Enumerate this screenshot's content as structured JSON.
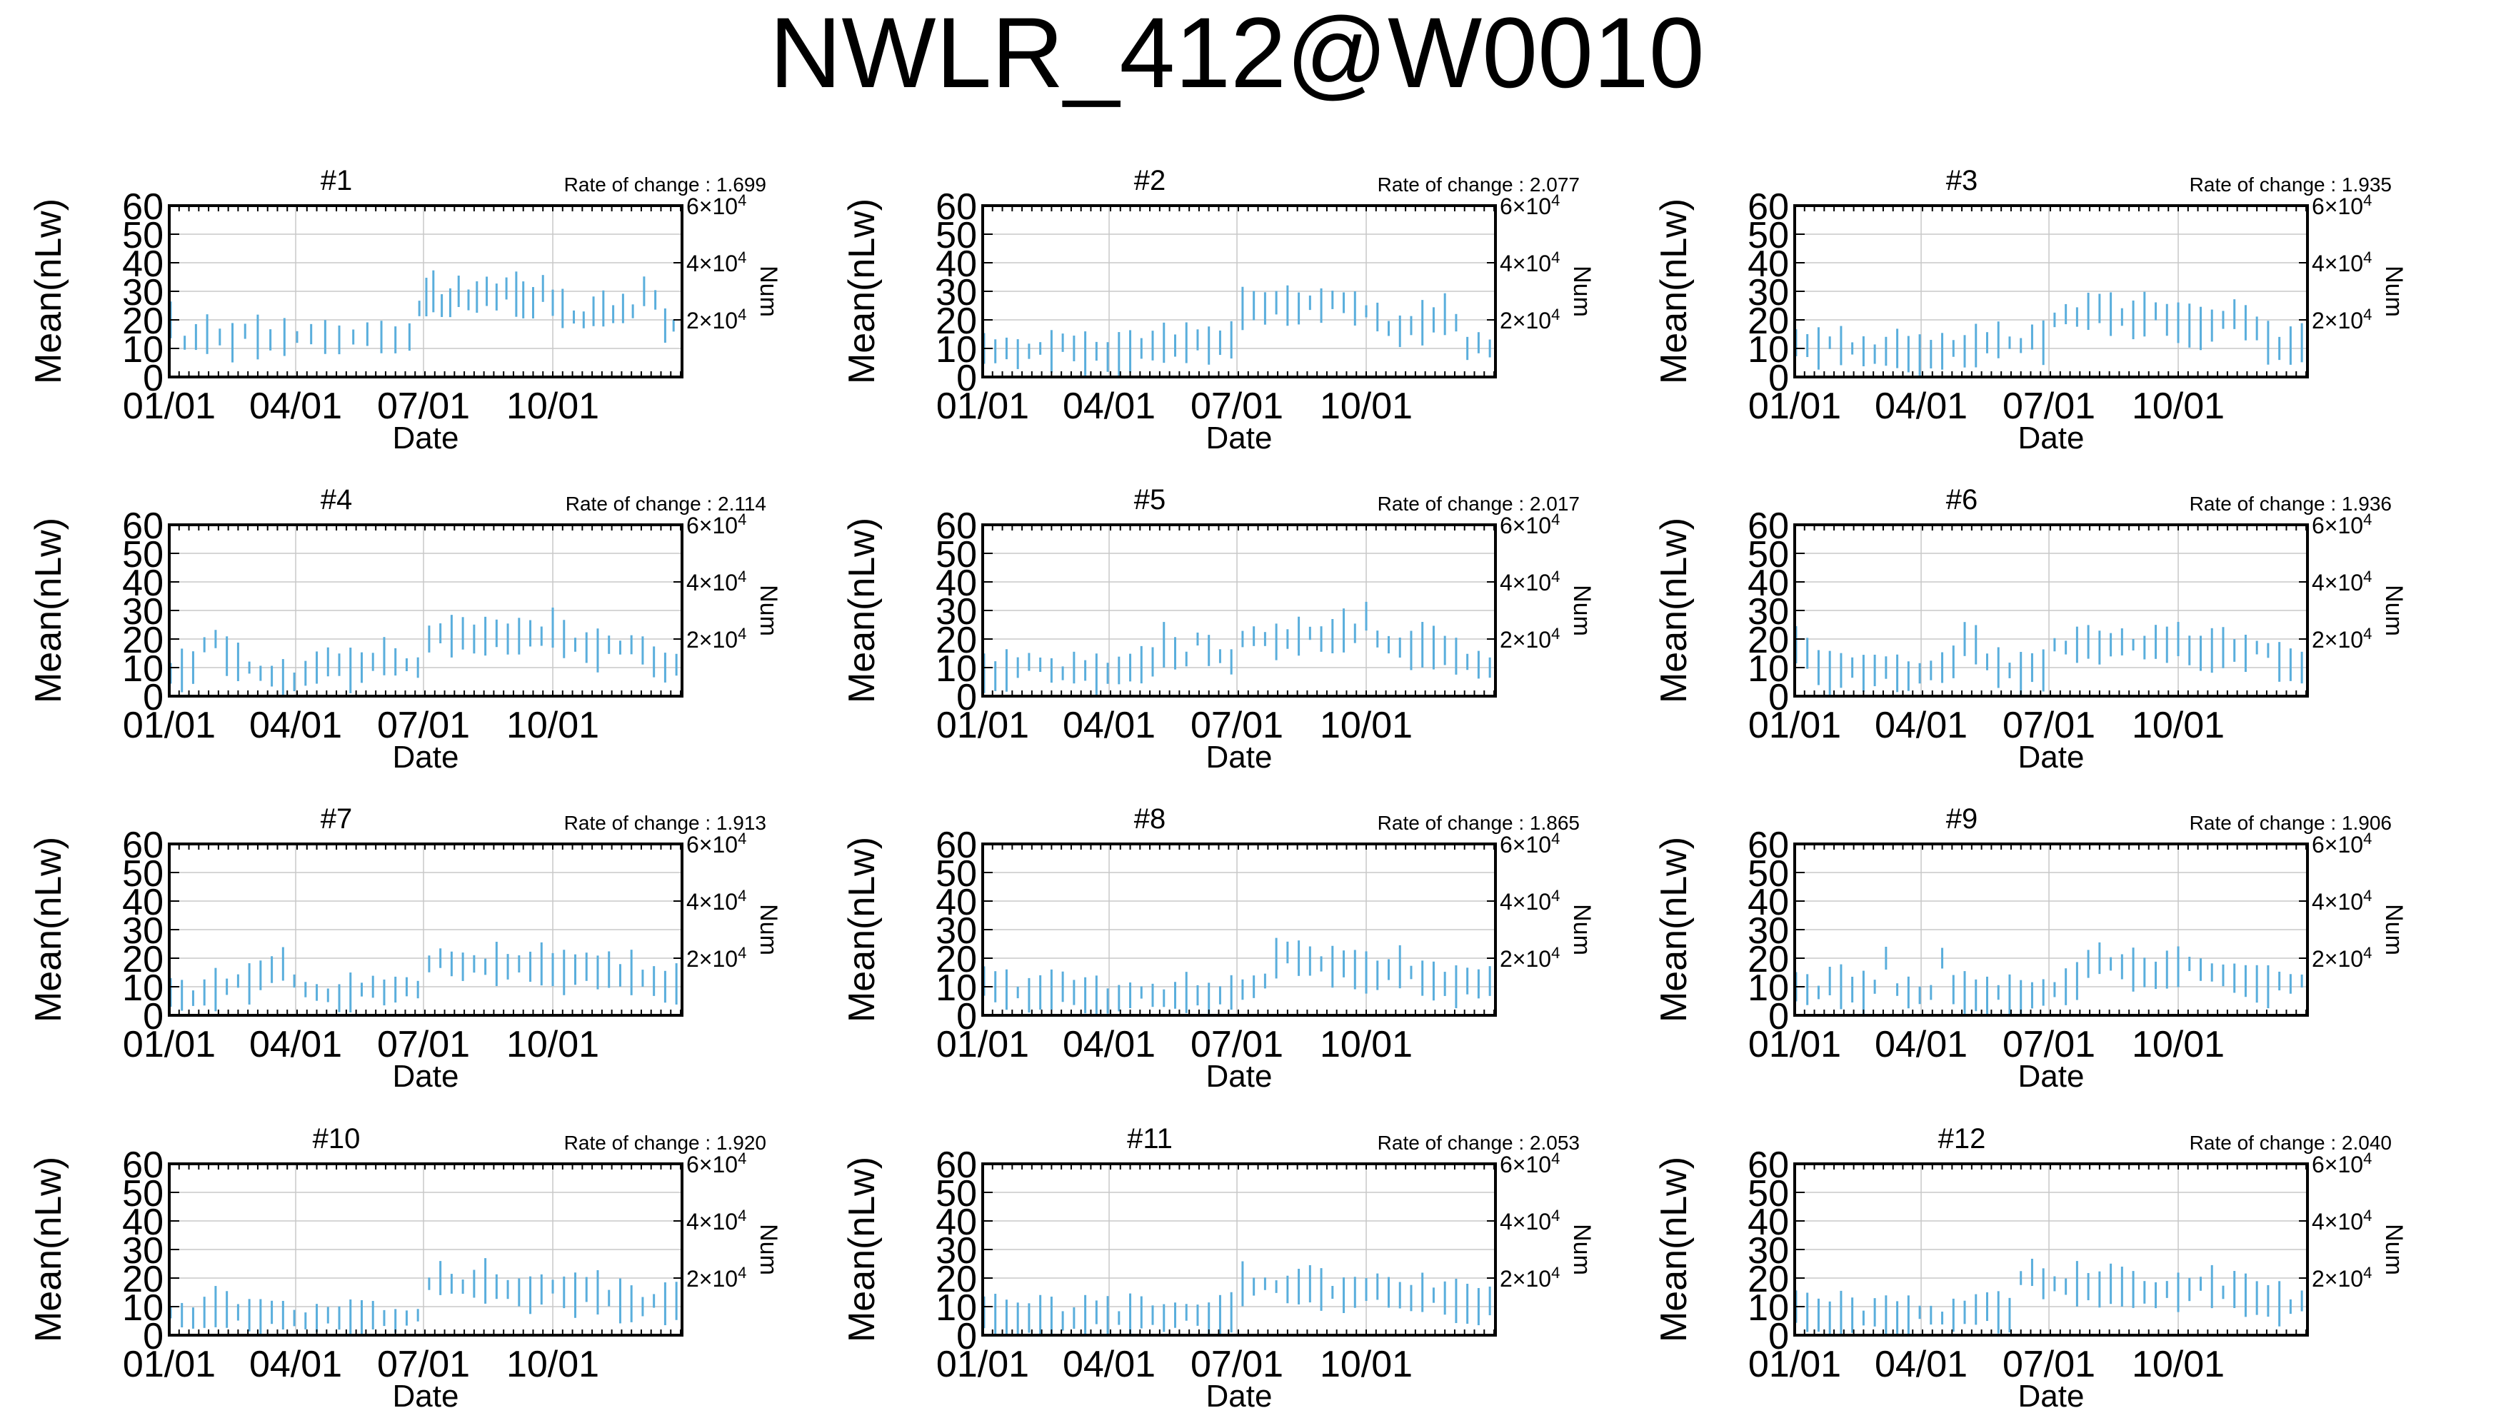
{
  "figure": {
    "title": "NWLR_412@W0010"
  },
  "common": {
    "xlabel": "Date",
    "ylabel": "Mean(nLw)",
    "y2label": "Num",
    "rate_prefix": "Rate of change : ",
    "x_ticks": [
      "01/01",
      "04/01",
      "07/01",
      "10/01"
    ],
    "y_ticks": [
      "0",
      "10",
      "20",
      "30",
      "40",
      "50",
      "60"
    ],
    "y2_tick_labels": [
      {
        "mantissa": "2",
        "exponent": "4"
      },
      {
        "mantissa": "4",
        "exponent": "4"
      },
      {
        "mantissa": "6",
        "exponent": "4"
      }
    ],
    "line_color": "#5aaedc",
    "grid": true
  },
  "chart_data": [
    {
      "type": "bar",
      "title": "#1",
      "rate_of_change": "1.699",
      "ylim": [
        0,
        60
      ],
      "y2lim": [
        0,
        60000
      ],
      "x": [
        "01/02",
        "01/12",
        "01/20",
        "01/28",
        "02/06",
        "02/15",
        "02/24",
        "03/05",
        "03/14",
        "03/24",
        "04/02",
        "04/12",
        "04/22",
        "05/02",
        "05/12",
        "05/22",
        "06/01",
        "06/11",
        "06/21",
        "06/28",
        "07/03",
        "07/08",
        "07/14",
        "07/20",
        "07/26",
        "08/02",
        "08/08",
        "08/15",
        "08/22",
        "08/29",
        "09/05",
        "09/10",
        "09/17",
        "09/24",
        "10/01",
        "10/08",
        "10/16",
        "10/23",
        "10/30",
        "11/06",
        "11/13",
        "11/20",
        "11/27",
        "12/05",
        "12/13",
        "12/20",
        "12/26"
      ],
      "values": [
        20,
        12,
        14,
        15,
        14,
        12,
        16,
        14,
        13,
        14,
        14,
        15,
        14,
        13,
        14,
        15,
        14,
        13,
        14,
        24,
        28,
        30,
        25,
        26,
        30,
        27,
        28,
        30,
        28,
        31,
        29,
        27,
        26,
        31,
        26,
        24,
        21,
        20,
        23,
        24,
        22,
        24,
        23,
        30,
        27,
        18,
        18
      ]
    },
    {
      "type": "bar",
      "title": "#2",
      "rate_of_change": "2.077",
      "ylim": [
        0,
        60
      ],
      "y2lim": [
        0,
        60000
      ],
      "x": [
        "01/02",
        "01/10",
        "01/18",
        "01/26",
        "02/03",
        "02/11",
        "02/19",
        "02/27",
        "03/07",
        "03/15",
        "03/23",
        "03/31",
        "04/08",
        "04/16",
        "04/24",
        "05/02",
        "05/10",
        "05/18",
        "05/26",
        "06/03",
        "06/11",
        "06/19",
        "06/27",
        "07/05",
        "07/13",
        "07/21",
        "07/29",
        "08/06",
        "08/14",
        "08/22",
        "08/30",
        "09/07",
        "09/15",
        "09/23",
        "10/01",
        "10/09",
        "10/17",
        "10/25",
        "11/02",
        "11/10",
        "11/18",
        "11/26",
        "12/04",
        "12/12",
        "12/20",
        "12/28"
      ],
      "values": [
        10,
        9,
        10,
        8,
        9,
        10,
        9,
        12,
        10,
        8,
        9,
        7,
        8,
        9,
        10,
        11,
        12,
        11,
        12,
        13,
        11,
        12,
        13,
        24,
        25,
        24,
        26,
        25,
        24,
        26,
        25,
        27,
        26,
        24,
        23,
        21,
        17,
        16,
        18,
        19,
        20,
        22,
        19,
        10,
        12,
        10
      ]
    },
    {
      "type": "bar",
      "title": "#3",
      "rate_of_change": "1.935",
      "ylim": [
        0,
        60
      ],
      "y2lim": [
        0,
        60000
      ],
      "x": [
        "01/02",
        "01/10",
        "01/18",
        "01/26",
        "02/03",
        "02/11",
        "02/19",
        "02/27",
        "03/07",
        "03/15",
        "03/23",
        "03/31",
        "04/08",
        "04/16",
        "04/24",
        "05/02",
        "05/10",
        "05/18",
        "05/26",
        "06/03",
        "06/11",
        "06/19",
        "06/27",
        "07/05",
        "07/13",
        "07/21",
        "07/29",
        "08/06",
        "08/14",
        "08/22",
        "08/30",
        "09/07",
        "09/15",
        "09/23",
        "10/01",
        "10/09",
        "10/17",
        "10/25",
        "11/02",
        "11/10",
        "11/18",
        "11/26",
        "12/04",
        "12/12",
        "12/20",
        "12/28"
      ],
      "values": [
        12,
        11,
        10,
        12,
        11,
        10,
        9,
        8,
        9,
        10,
        8,
        7,
        8,
        9,
        10,
        9,
        11,
        12,
        13,
        12,
        11,
        14,
        12,
        20,
        22,
        21,
        23,
        24,
        22,
        21,
        20,
        22,
        23,
        20,
        19,
        18,
        17,
        18,
        20,
        22,
        19,
        17,
        12,
        10,
        11,
        12
      ]
    },
    {
      "type": "bar",
      "title": "#4",
      "rate_of_change": "2.114",
      "ylim": [
        0,
        60
      ],
      "y2lim": [
        0,
        60000
      ],
      "x": [
        "01/02",
        "01/10",
        "01/18",
        "01/26",
        "02/03",
        "02/11",
        "02/19",
        "02/27",
        "03/07",
        "03/15",
        "03/23",
        "03/31",
        "04/08",
        "04/16",
        "04/24",
        "05/02",
        "05/10",
        "05/18",
        "05/26",
        "06/03",
        "06/11",
        "06/19",
        "06/27",
        "07/05",
        "07/13",
        "07/21",
        "07/29",
        "08/06",
        "08/14",
        "08/22",
        "08/30",
        "09/07",
        "09/15",
        "09/23",
        "10/01",
        "10/09",
        "10/17",
        "10/25",
        "11/02",
        "11/10",
        "11/18",
        "11/26",
        "12/04",
        "12/12",
        "12/20",
        "12/28"
      ],
      "values": [
        8,
        9,
        10,
        18,
        20,
        14,
        12,
        10,
        8,
        7,
        6,
        5,
        8,
        10,
        12,
        11,
        9,
        10,
        12,
        14,
        12,
        11,
        10,
        20,
        22,
        21,
        22,
        20,
        21,
        22,
        20,
        21,
        22,
        21,
        24,
        20,
        18,
        17,
        16,
        18,
        17,
        18,
        16,
        12,
        10,
        11
      ]
    },
    {
      "type": "bar",
      "title": "#5",
      "rate_of_change": "2.017",
      "ylim": [
        0,
        60
      ],
      "y2lim": [
        0,
        60000
      ],
      "x": [
        "01/02",
        "01/10",
        "01/18",
        "01/26",
        "02/03",
        "02/11",
        "02/19",
        "02/27",
        "03/07",
        "03/15",
        "03/23",
        "03/31",
        "04/08",
        "04/16",
        "04/24",
        "05/02",
        "05/10",
        "05/18",
        "05/26",
        "06/03",
        "06/11",
        "06/19",
        "06/27",
        "07/05",
        "07/13",
        "07/21",
        "07/29",
        "08/06",
        "08/14",
        "08/22",
        "08/30",
        "09/07",
        "09/15",
        "09/23",
        "10/01",
        "10/09",
        "10/17",
        "10/25",
        "11/02",
        "11/10",
        "11/18",
        "11/26",
        "12/04",
        "12/12",
        "12/20",
        "12/28"
      ],
      "values": [
        8,
        7,
        9,
        10,
        12,
        11,
        9,
        8,
        10,
        9,
        7,
        8,
        9,
        10,
        11,
        12,
        18,
        15,
        13,
        20,
        16,
        14,
        12,
        20,
        21,
        20,
        19,
        20,
        21,
        22,
        20,
        21,
        23,
        22,
        28,
        20,
        18,
        17,
        16,
        18,
        17,
        16,
        14,
        12,
        11,
        10
      ]
    },
    {
      "type": "bar",
      "title": "#6",
      "rate_of_change": "1.936",
      "ylim": [
        0,
        60
      ],
      "y2lim": [
        0,
        60000
      ],
      "x": [
        "01/02",
        "01/10",
        "01/18",
        "01/26",
        "02/03",
        "02/11",
        "02/19",
        "02/27",
        "03/07",
        "03/15",
        "03/23",
        "03/31",
        "04/08",
        "04/16",
        "04/24",
        "05/02",
        "05/10",
        "05/18",
        "05/26",
        "06/03",
        "06/11",
        "06/19",
        "06/27",
        "07/05",
        "07/13",
        "07/21",
        "07/29",
        "08/06",
        "08/14",
        "08/22",
        "08/30",
        "09/07",
        "09/15",
        "09/23",
        "10/01",
        "10/09",
        "10/17",
        "10/25",
        "11/02",
        "11/10",
        "11/18",
        "11/26",
        "12/04",
        "12/12",
        "12/20",
        "12/28"
      ],
      "values": [
        18,
        15,
        10,
        8,
        9,
        10,
        8,
        9,
        10,
        8,
        7,
        8,
        9,
        10,
        12,
        20,
        18,
        12,
        10,
        9,
        8,
        10,
        9,
        18,
        17,
        18,
        19,
        17,
        18,
        19,
        18,
        17,
        19,
        18,
        20,
        16,
        15,
        16,
        17,
        16,
        15,
        17,
        16,
        12,
        11,
        10
      ]
    },
    {
      "type": "bar",
      "title": "#7",
      "rate_of_change": "1.913",
      "ylim": [
        0,
        60
      ],
      "y2lim": [
        0,
        60000
      ],
      "x": [
        "01/02",
        "01/10",
        "01/18",
        "01/26",
        "02/03",
        "02/11",
        "02/19",
        "02/27",
        "03/07",
        "03/15",
        "03/23",
        "03/31",
        "04/08",
        "04/16",
        "04/24",
        "05/02",
        "05/10",
        "05/18",
        "05/26",
        "06/03",
        "06/11",
        "06/19",
        "06/27",
        "07/05",
        "07/13",
        "07/21",
        "07/29",
        "08/06",
        "08/14",
        "08/22",
        "08/30",
        "09/07",
        "09/15",
        "09/23",
        "10/01",
        "10/09",
        "10/17",
        "10/25",
        "11/02",
        "11/10",
        "11/18",
        "11/26",
        "12/04",
        "12/12",
        "12/20",
        "12/28"
      ],
      "values": [
        8,
        7,
        6,
        8,
        9,
        10,
        12,
        11,
        14,
        16,
        18,
        12,
        9,
        8,
        7,
        6,
        8,
        9,
        10,
        8,
        9,
        10,
        9,
        18,
        20,
        18,
        17,
        18,
        17,
        18,
        17,
        18,
        17,
        18,
        16,
        15,
        16,
        17,
        15,
        16,
        14,
        15,
        13,
        12,
        10,
        11
      ]
    },
    {
      "type": "bar",
      "title": "#8",
      "rate_of_change": "1.865",
      "ylim": [
        0,
        60
      ],
      "y2lim": [
        0,
        60000
      ],
      "x": [
        "01/02",
        "01/10",
        "01/18",
        "01/26",
        "02/03",
        "02/11",
        "02/19",
        "02/27",
        "03/07",
        "03/15",
        "03/23",
        "03/31",
        "04/08",
        "04/16",
        "04/24",
        "05/02",
        "05/10",
        "05/18",
        "05/26",
        "06/03",
        "06/11",
        "06/19",
        "06/27",
        "07/05",
        "07/13",
        "07/21",
        "07/29",
        "08/06",
        "08/14",
        "08/22",
        "08/30",
        "09/07",
        "09/15",
        "09/23",
        "10/01",
        "10/09",
        "10/17",
        "10/25",
        "11/02",
        "11/10",
        "11/18",
        "11/26",
        "12/04",
        "12/12",
        "12/20",
        "12/28"
      ],
      "values": [
        12,
        10,
        9,
        8,
        7,
        8,
        9,
        10,
        8,
        7,
        6,
        5,
        6,
        7,
        8,
        7,
        6,
        7,
        8,
        7,
        6,
        7,
        8,
        9,
        10,
        12,
        20,
        22,
        20,
        19,
        18,
        17,
        18,
        16,
        15,
        14,
        16,
        17,
        15,
        13,
        12,
        11,
        10,
        12,
        11,
        12
      ]
    },
    {
      "type": "bar",
      "title": "#9",
      "rate_of_change": "1.906",
      "ylim": [
        0,
        60
      ],
      "y2lim": [
        0,
        60000
      ],
      "x": [
        "01/02",
        "01/10",
        "01/18",
        "01/26",
        "02/03",
        "02/11",
        "02/19",
        "02/27",
        "03/07",
        "03/15",
        "03/23",
        "03/31",
        "04/08",
        "04/16",
        "04/24",
        "05/02",
        "05/10",
        "05/18",
        "05/26",
        "06/03",
        "06/11",
        "06/19",
        "06/27",
        "07/05",
        "07/13",
        "07/21",
        "07/29",
        "08/06",
        "08/14",
        "08/22",
        "08/30",
        "09/07",
        "09/15",
        "09/23",
        "10/01",
        "10/09",
        "10/17",
        "10/25",
        "11/02",
        "11/10",
        "11/18",
        "11/26",
        "12/04",
        "12/12",
        "12/20",
        "12/28"
      ],
      "values": [
        10,
        9,
        8,
        12,
        10,
        9,
        8,
        10,
        20,
        9,
        8,
        7,
        8,
        20,
        9,
        8,
        7,
        6,
        8,
        7,
        6,
        7,
        8,
        9,
        10,
        12,
        18,
        20,
        18,
        17,
        16,
        15,
        14,
        16,
        17,
        18,
        16,
        15,
        14,
        13,
        12,
        11,
        10,
        12,
        11,
        12
      ]
    },
    {
      "type": "bar",
      "title": "#10",
      "rate_of_change": "1.920",
      "ylim": [
        0,
        60
      ],
      "y2lim": [
        0,
        60000
      ],
      "x": [
        "01/02",
        "01/10",
        "01/18",
        "01/26",
        "02/03",
        "02/11",
        "02/19",
        "02/27",
        "03/07",
        "03/15",
        "03/23",
        "03/31",
        "04/08",
        "04/16",
        "04/24",
        "05/02",
        "05/10",
        "05/18",
        "05/26",
        "06/03",
        "06/11",
        "06/19",
        "06/27",
        "07/05",
        "07/13",
        "07/21",
        "07/29",
        "08/06",
        "08/14",
        "08/22",
        "08/30",
        "09/07",
        "09/15",
        "09/23",
        "10/01",
        "10/09",
        "10/17",
        "10/25",
        "11/02",
        "11/10",
        "11/18",
        "11/26",
        "12/04",
        "12/12",
        "12/20",
        "12/28"
      ],
      "values": [
        8,
        7,
        6,
        8,
        10,
        9,
        8,
        7,
        6,
        8,
        7,
        6,
        5,
        6,
        7,
        6,
        5,
        6,
        7,
        6,
        5,
        6,
        7,
        18,
        20,
        18,
        17,
        18,
        19,
        17,
        16,
        15,
        14,
        16,
        17,
        15,
        14,
        16,
        15,
        13,
        12,
        11,
        10,
        12,
        11,
        12
      ]
    },
    {
      "type": "bar",
      "title": "#11",
      "rate_of_change": "2.053",
      "ylim": [
        0,
        60
      ],
      "y2lim": [
        0,
        60000
      ],
      "x": [
        "01/02",
        "01/10",
        "01/18",
        "01/26",
        "02/03",
        "02/11",
        "02/19",
        "02/27",
        "03/07",
        "03/15",
        "03/23",
        "03/31",
        "04/08",
        "04/16",
        "04/24",
        "05/02",
        "05/10",
        "05/18",
        "05/26",
        "06/03",
        "06/11",
        "06/19",
        "06/27",
        "07/05",
        "07/13",
        "07/21",
        "07/29",
        "08/06",
        "08/14",
        "08/22",
        "08/30",
        "09/07",
        "09/15",
        "09/23",
        "10/01",
        "10/09",
        "10/17",
        "10/25",
        "11/02",
        "11/10",
        "11/18",
        "11/26",
        "12/04",
        "12/12",
        "12/20",
        "12/28"
      ],
      "values": [
        8,
        7,
        6,
        5,
        6,
        7,
        6,
        5,
        6,
        7,
        8,
        7,
        6,
        7,
        8,
        7,
        6,
        7,
        8,
        7,
        6,
        7,
        8,
        18,
        17,
        18,
        17,
        16,
        17,
        18,
        16,
        15,
        14,
        15,
        16,
        17,
        15,
        14,
        13,
        15,
        14,
        13,
        12,
        11,
        10,
        12
      ]
    },
    {
      "type": "bar",
      "title": "#12",
      "rate_of_change": "2.040",
      "ylim": [
        0,
        60
      ],
      "y2lim": [
        0,
        60000
      ],
      "x": [
        "01/02",
        "01/10",
        "01/18",
        "01/26",
        "02/03",
        "02/11",
        "02/19",
        "02/27",
        "03/07",
        "03/15",
        "03/23",
        "03/31",
        "04/08",
        "04/16",
        "04/24",
        "05/02",
        "05/10",
        "05/18",
        "05/26",
        "06/03",
        "06/11",
        "06/19",
        "06/27",
        "07/05",
        "07/13",
        "07/21",
        "07/29",
        "08/06",
        "08/14",
        "08/22",
        "08/30",
        "09/07",
        "09/15",
        "09/23",
        "10/01",
        "10/09",
        "10/17",
        "10/25",
        "11/02",
        "11/10",
        "11/18",
        "11/26",
        "12/04",
        "12/12",
        "12/20",
        "12/28"
      ],
      "values": [
        10,
        8,
        7,
        6,
        8,
        7,
        6,
        8,
        7,
        6,
        7,
        8,
        7,
        6,
        7,
        8,
        9,
        10,
        8,
        7,
        20,
        22,
        18,
        18,
        17,
        18,
        17,
        16,
        18,
        17,
        16,
        15,
        14,
        16,
        15,
        16,
        18,
        17,
        15,
        16,
        14,
        13,
        12,
        11,
        10,
        12
      ]
    }
  ]
}
